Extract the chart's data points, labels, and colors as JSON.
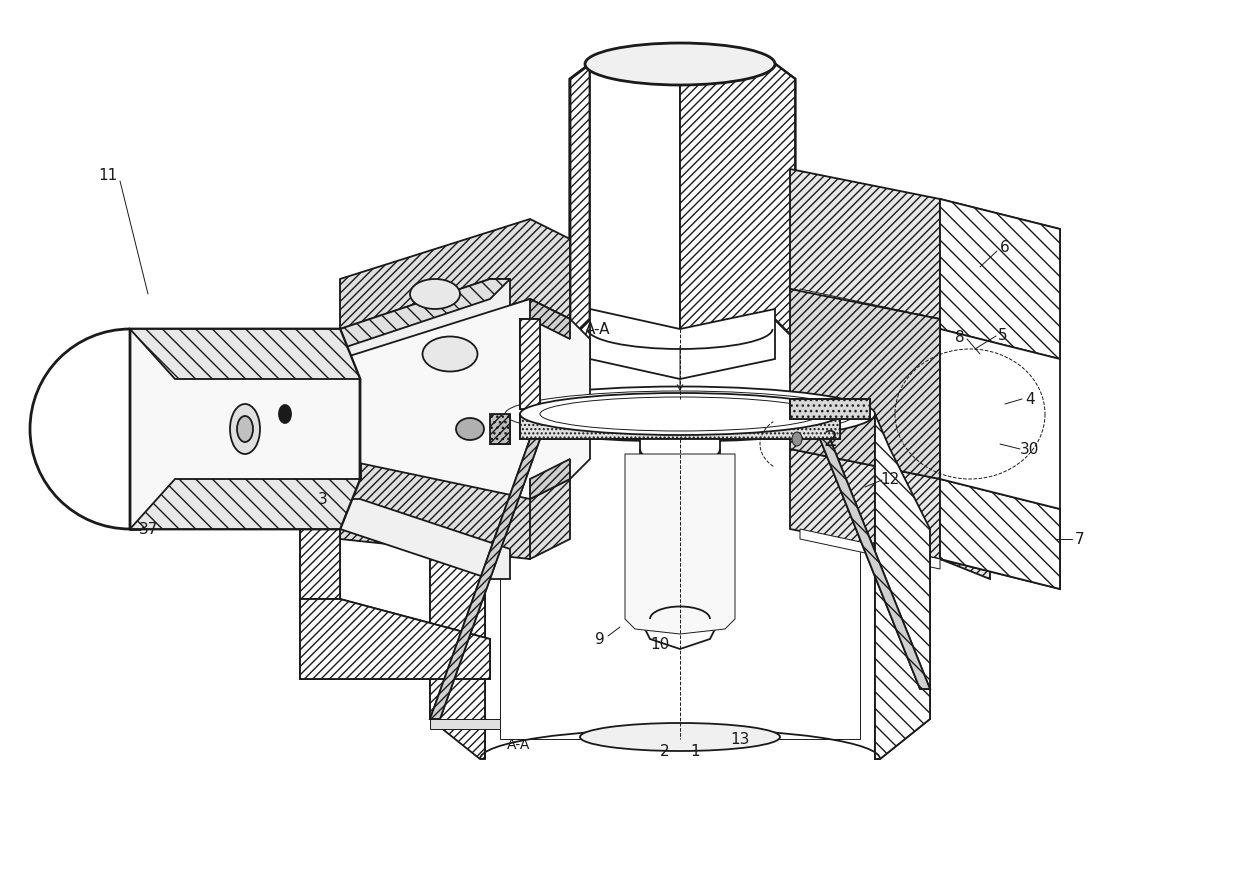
{
  "background_color": "#ffffff",
  "line_color": "#1a1a1a",
  "lw": 1.3,
  "lw_thick": 2.0,
  "lw_thin": 0.7,
  "fig_width": 12.4,
  "fig_height": 8.87,
  "dpi": 100,
  "xmin": 0,
  "xmax": 1240,
  "ymin": 0,
  "ymax": 887
}
